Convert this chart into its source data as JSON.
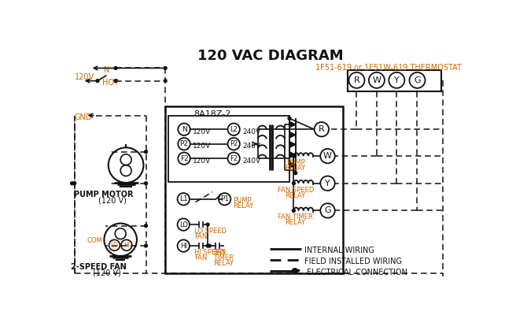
{
  "title": "120 VAC DIAGRAM",
  "title_color": "#111111",
  "thermostat_label": "1F51-619 or 1F51W-619 THERMOSTAT",
  "orange_color": "#cc6600",
  "controller_label": "8A18Z-2",
  "bg_color": "#ffffff",
  "lc": "#111111",
  "legend": [
    "INTERNAL WIRING",
    "FIELD INSTALLED WIRING",
    "ELECTRICAL CONNECTION"
  ],
  "left_terminals": [
    "N",
    "P2",
    "F2"
  ],
  "right_terminals": [
    "L2",
    "P2",
    "F2"
  ],
  "voltage_left": [
    "120V",
    "120V",
    "120V"
  ],
  "voltage_right": [
    "240V",
    "240V",
    "240V"
  ],
  "relay_labels": [
    "W",
    "Y",
    "G"
  ],
  "relay_names": [
    [
      "PUMP",
      "RELAY"
    ],
    [
      "FAN SPEED",
      "RELAY"
    ],
    [
      "FAN TIMER",
      "RELAY"
    ]
  ],
  "thermostat_terminals": [
    "R",
    "W",
    "Y",
    "G"
  ]
}
